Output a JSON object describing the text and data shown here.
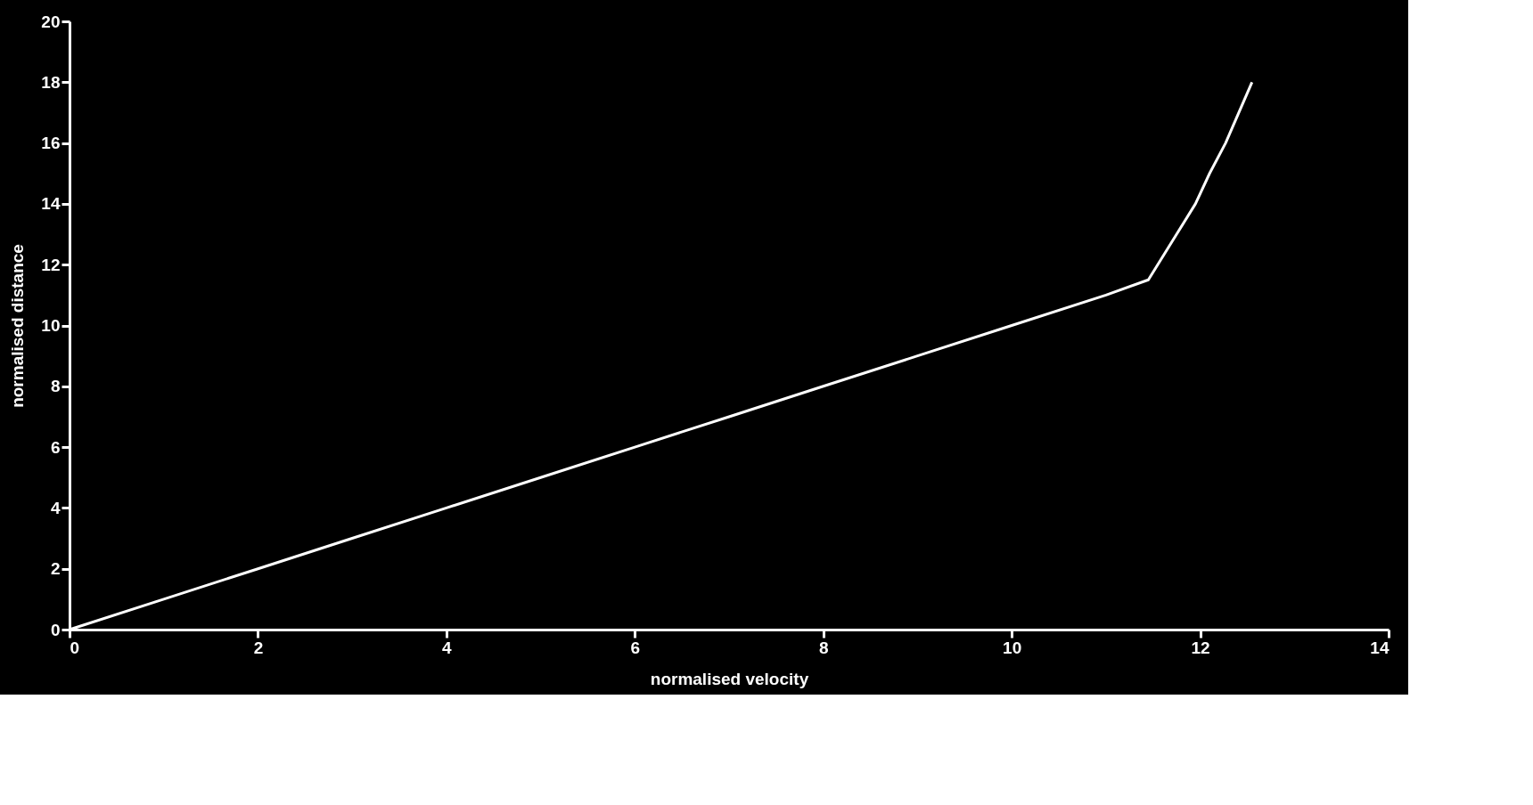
{
  "chart_data": {
    "type": "line",
    "xlabel": "normalised velocity",
    "ylabel": "normalised distance",
    "series": [
      {
        "color": "#ffffff",
        "x": [
          0,
          1,
          2,
          3,
          4,
          5,
          6,
          7,
          8,
          9,
          10,
          11,
          11.45,
          11.75,
          11.95,
          12.1,
          12.27,
          12.55
        ],
        "values": [
          0,
          1,
          2,
          3,
          4,
          5,
          6,
          7,
          8,
          9,
          10,
          11,
          11.5,
          13,
          14,
          15,
          16,
          18
        ]
      }
    ],
    "xlim": [
      0,
      14
    ],
    "xticks": [
      0,
      2,
      4,
      6,
      8,
      10,
      12,
      14
    ],
    "ylim": [
      0,
      20
    ],
    "yticks": [
      0,
      2,
      4,
      6,
      8,
      10,
      12,
      14,
      16,
      18,
      20
    ],
    "grid": false,
    "legend": false,
    "marker": "none",
    "line_style": "solid"
  }
}
